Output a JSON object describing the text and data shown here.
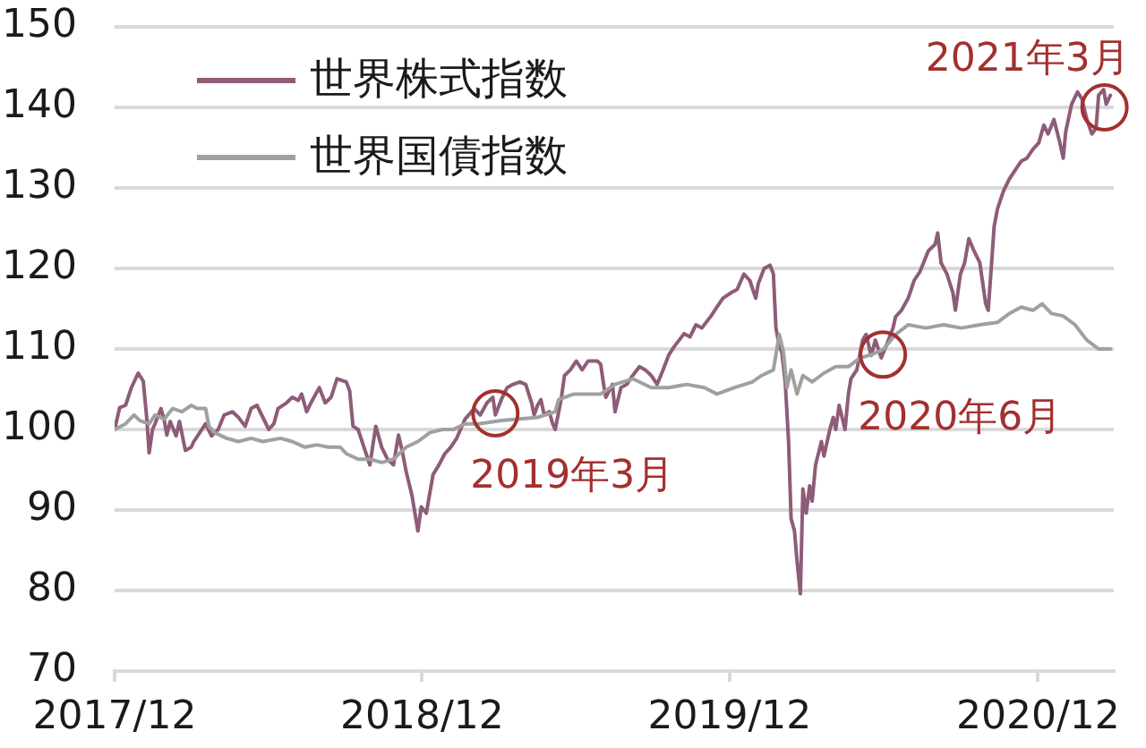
{
  "chart_data": {
    "type": "line",
    "xlim": [
      "2017-12-31",
      "2021-03-31"
    ],
    "xticks": [
      {
        "value": "2017-12-31",
        "label": "2017/12"
      },
      {
        "value": "2018-12-31",
        "label": "2018/12"
      },
      {
        "value": "2019-12-31",
        "label": "2019/12"
      },
      {
        "value": "2020-12-31",
        "label": "2020/12"
      }
    ],
    "ylim": [
      70,
      150
    ],
    "yticks": [
      70,
      80,
      90,
      100,
      110,
      120,
      130,
      140,
      150
    ],
    "grid": "y",
    "legend": "top left",
    "series": [
      {
        "name": "世界株式指数",
        "color": "#8e5c78",
        "x": [
          "2017-12-31",
          "2018-01-06",
          "2018-01-13",
          "2018-01-20",
          "2018-01-28",
          "2018-02-03",
          "2018-02-07",
          "2018-02-10",
          "2018-02-14",
          "2018-02-17",
          "2018-02-24",
          "2018-02-28",
          "2018-03-03",
          "2018-03-07",
          "2018-03-14",
          "2018-03-18",
          "2018-03-25",
          "2018-04-01",
          "2018-04-04",
          "2018-04-11",
          "2018-04-18",
          "2018-04-25",
          "2018-05-03",
          "2018-05-10",
          "2018-05-20",
          "2018-05-27",
          "2018-06-04",
          "2018-06-11",
          "2018-06-18",
          "2018-06-25",
          "2018-07-02",
          "2018-07-08",
          "2018-07-13",
          "2018-07-23",
          "2018-07-30",
          "2018-08-06",
          "2018-08-10",
          "2018-08-16",
          "2018-08-21",
          "2018-08-31",
          "2018-09-07",
          "2018-09-14",
          "2018-09-21",
          "2018-10-02",
          "2018-10-06",
          "2018-10-10",
          "2018-10-16",
          "2018-10-23",
          "2018-10-30",
          "2018-11-06",
          "2018-11-13",
          "2018-11-20",
          "2018-11-27",
          "2018-12-03",
          "2018-12-08",
          "2018-12-12",
          "2018-12-19",
          "2018-12-26",
          "2018-12-30",
          "2019-01-05",
          "2019-01-13",
          "2019-01-20",
          "2019-01-27",
          "2019-02-03",
          "2019-02-10",
          "2019-02-20",
          "2019-03-03",
          "2019-03-10",
          "2019-03-18",
          "2019-03-25",
          "2019-03-28",
          "2019-04-04",
          "2019-04-11",
          "2019-04-18",
          "2019-04-26",
          "2019-05-03",
          "2019-05-10",
          "2019-05-13",
          "2019-05-17",
          "2019-05-21",
          "2019-05-25",
          "2019-05-31",
          "2019-06-04",
          "2019-06-07",
          "2019-06-14",
          "2019-06-18",
          "2019-06-25",
          "2019-07-02",
          "2019-07-09",
          "2019-07-16",
          "2019-07-27",
          "2019-07-31",
          "2019-08-03",
          "2019-08-06",
          "2019-08-14",
          "2019-08-17",
          "2019-08-24",
          "2019-08-31",
          "2019-09-07",
          "2019-09-15",
          "2019-09-22",
          "2019-09-29",
          "2019-10-06",
          "2019-10-13",
          "2019-10-20",
          "2019-10-27",
          "2019-11-07",
          "2019-11-14",
          "2019-11-21",
          "2019-11-28",
          "2019-12-09",
          "2019-12-16",
          "2019-12-23",
          "2020-01-02",
          "2020-01-09",
          "2020-01-17",
          "2020-01-24",
          "2020-01-31",
          "2020-02-03",
          "2020-02-10",
          "2020-02-17",
          "2020-02-21",
          "2020-02-24",
          "2020-02-28",
          "2020-03-02",
          "2020-03-06",
          "2020-03-10",
          "2020-03-13",
          "2020-03-17",
          "2020-03-20",
          "2020-03-24",
          "2020-03-27",
          "2020-03-31",
          "2020-04-04",
          "2020-04-07",
          "2020-04-11",
          "2020-04-18",
          "2020-04-21",
          "2020-04-28",
          "2020-05-02",
          "2020-05-05",
          "2020-05-09",
          "2020-05-16",
          "2020-05-20",
          "2020-05-23",
          "2020-05-30",
          "2020-06-06",
          "2020-06-10",
          "2020-06-16",
          "2020-06-21",
          "2020-06-28",
          "2020-07-05",
          "2020-07-12",
          "2020-07-15",
          "2020-07-22",
          "2020-07-30",
          "2020-08-06",
          "2020-08-13",
          "2020-08-23",
          "2020-08-31",
          "2020-09-03",
          "2020-09-07",
          "2020-09-14",
          "2020-09-21",
          "2020-09-24",
          "2020-09-30",
          "2020-10-05",
          "2020-10-10",
          "2020-10-16",
          "2020-10-23",
          "2020-10-30",
          "2020-11-02",
          "2020-11-06",
          "2020-11-09",
          "2020-11-13",
          "2020-11-20",
          "2020-11-27",
          "2020-12-04",
          "2020-12-11",
          "2020-12-18",
          "2020-12-25",
          "2021-01-01",
          "2021-01-07",
          "2021-01-12",
          "2021-01-19",
          "2021-01-26",
          "2021-01-30",
          "2021-02-02",
          "2021-02-09",
          "2021-02-16",
          "2021-02-21",
          "2021-02-27",
          "2021-03-05",
          "2021-03-10",
          "2021-03-13",
          "2021-03-19",
          "2021-03-22",
          "2021-03-27"
        ],
        "values": [
          100,
          102.7,
          103,
          105.2,
          107,
          106,
          101.6,
          97.1,
          100,
          100.7,
          102.6,
          101.1,
          99.3,
          101,
          99.2,
          101,
          97.4,
          97.8,
          98.5,
          99.6,
          100.7,
          99.2,
          100,
          101.8,
          102.2,
          101.5,
          100.4,
          102.6,
          103,
          101.5,
          100,
          100.7,
          102.6,
          103.3,
          104,
          103.6,
          104.4,
          102.2,
          103.3,
          105.2,
          103.3,
          104,
          106.3,
          105.9,
          104.8,
          100.4,
          100,
          97.8,
          95.6,
          100.4,
          97.8,
          96.3,
          95.6,
          99.3,
          97,
          94.8,
          91.8,
          87.4,
          90.4,
          89.6,
          94.4,
          95.6,
          97,
          97.8,
          98.9,
          101.3,
          102.6,
          101.8,
          103.3,
          104,
          101.8,
          103.7,
          105.2,
          105.6,
          105.9,
          105.6,
          103.3,
          101.8,
          103,
          103.7,
          101.8,
          102.2,
          100.7,
          100,
          103.7,
          106.7,
          107.4,
          108.5,
          107.4,
          108.5,
          108.5,
          108.1,
          105.9,
          104,
          105.6,
          102.2,
          105.2,
          105.6,
          106.7,
          107.8,
          107.4,
          106.7,
          105.6,
          107.4,
          109.3,
          110.4,
          111.9,
          111.5,
          113,
          112.6,
          114.1,
          115.2,
          116.3,
          117,
          117.4,
          119.3,
          118.5,
          116.3,
          118.1,
          120,
          120.4,
          119.3,
          112.6,
          110.4,
          109.6,
          105.9,
          98.5,
          88.9,
          87.4,
          83.7,
          79.6,
          92.6,
          89.6,
          93,
          91.1,
          95.6,
          98.5,
          96.7,
          100,
          101.5,
          100,
          103,
          100,
          104.4,
          106.3,
          107.4,
          111.1,
          111.8,
          109.2,
          111.1,
          108.9,
          110.7,
          112.6,
          114,
          114.8,
          116.3,
          118.5,
          119.6,
          122.2,
          123,
          124.4,
          120.7,
          119.3,
          117,
          114.8,
          119.3,
          120.7,
          123.7,
          122.2,
          120.7,
          115.6,
          114.8,
          120.7,
          125.2,
          127.4,
          129.6,
          131.1,
          132.2,
          133.3,
          133.7,
          134.8,
          135.6,
          137.8,
          136.7,
          138.5,
          135.6,
          133.7,
          137,
          140.4,
          141.9,
          141.1,
          138.5,
          136.7,
          137.4,
          141.5,
          142.2,
          140.4,
          141.5
        ]
      },
      {
        "name": "世界国債指数",
        "color": "#a0a0a0",
        "x": [
          "2017-12-31",
          "2018-01-13",
          "2018-01-23",
          "2018-01-30",
          "2018-02-10",
          "2018-02-17",
          "2018-02-28",
          "2018-03-10",
          "2018-03-21",
          "2018-04-01",
          "2018-04-08",
          "2018-04-18",
          "2018-04-22",
          "2018-04-29",
          "2018-05-13",
          "2018-05-27",
          "2018-06-11",
          "2018-06-25",
          "2018-07-16",
          "2018-07-30",
          "2018-08-14",
          "2018-08-28",
          "2018-09-11",
          "2018-09-25",
          "2018-10-02",
          "2018-10-16",
          "2018-10-30",
          "2018-11-13",
          "2018-11-27",
          "2018-12-12",
          "2018-12-26",
          "2019-01-09",
          "2019-01-24",
          "2019-02-06",
          "2019-02-20",
          "2019-03-08",
          "2019-04-04",
          "2019-05-17",
          "2019-06-07",
          "2019-06-11",
          "2019-06-29",
          "2019-07-31",
          "2019-08-17",
          "2019-09-07",
          "2019-09-29",
          "2019-10-20",
          "2019-11-10",
          "2019-12-01",
          "2019-12-16",
          "2020-01-06",
          "2020-01-27",
          "2020-02-07",
          "2020-02-21",
          "2020-02-28",
          "2020-03-04",
          "2020-03-08",
          "2020-03-13",
          "2020-03-20",
          "2020-03-27",
          "2020-04-07",
          "2020-04-21",
          "2020-05-05",
          "2020-05-20",
          "2020-06-03",
          "2020-06-17",
          "2020-07-01",
          "2020-07-15",
          "2020-07-30",
          "2020-08-20",
          "2020-09-10",
          "2020-10-01",
          "2020-10-23",
          "2020-11-13",
          "2020-11-27",
          "2020-12-11",
          "2020-12-25",
          "2021-01-05",
          "2021-01-16",
          "2021-01-30",
          "2021-02-13",
          "2021-02-27",
          "2021-03-13",
          "2021-03-27"
        ],
        "values": [
          100,
          100.7,
          101.8,
          101.1,
          100.7,
          101.8,
          101.3,
          102.6,
          102.2,
          103,
          102.6,
          102.6,
          100.4,
          99.6,
          98.9,
          98.5,
          98.9,
          98.5,
          98.9,
          98.5,
          97.8,
          98.1,
          97.8,
          97.8,
          97,
          96.3,
          96.3,
          95.9,
          96.3,
          97.8,
          98.5,
          99.6,
          100,
          100,
          100.7,
          100.7,
          101.1,
          101.5,
          102.2,
          103.7,
          104.4,
          104.4,
          105.6,
          106.3,
          105.2,
          105.2,
          105.6,
          105.2,
          104.4,
          105.2,
          105.9,
          106.7,
          107.4,
          111.8,
          109.6,
          105.2,
          107.4,
          104.4,
          106.7,
          105.9,
          107,
          107.8,
          107.8,
          108.9,
          109.3,
          110,
          111.8,
          113,
          112.6,
          113,
          112.6,
          113,
          113.3,
          114.4,
          115.2,
          114.8,
          115.6,
          114.4,
          114.1,
          113,
          111.1,
          110,
          110
        ]
      }
    ],
    "annotations": [
      {
        "text": "2019年3月",
        "x": "2019-03-28",
        "y": 102
      },
      {
        "text": "2020年6月",
        "x": "2020-06-30",
        "y": 109.3
      },
      {
        "text": "2021年3月",
        "x": "2021-03-20",
        "y": 140
      }
    ]
  }
}
